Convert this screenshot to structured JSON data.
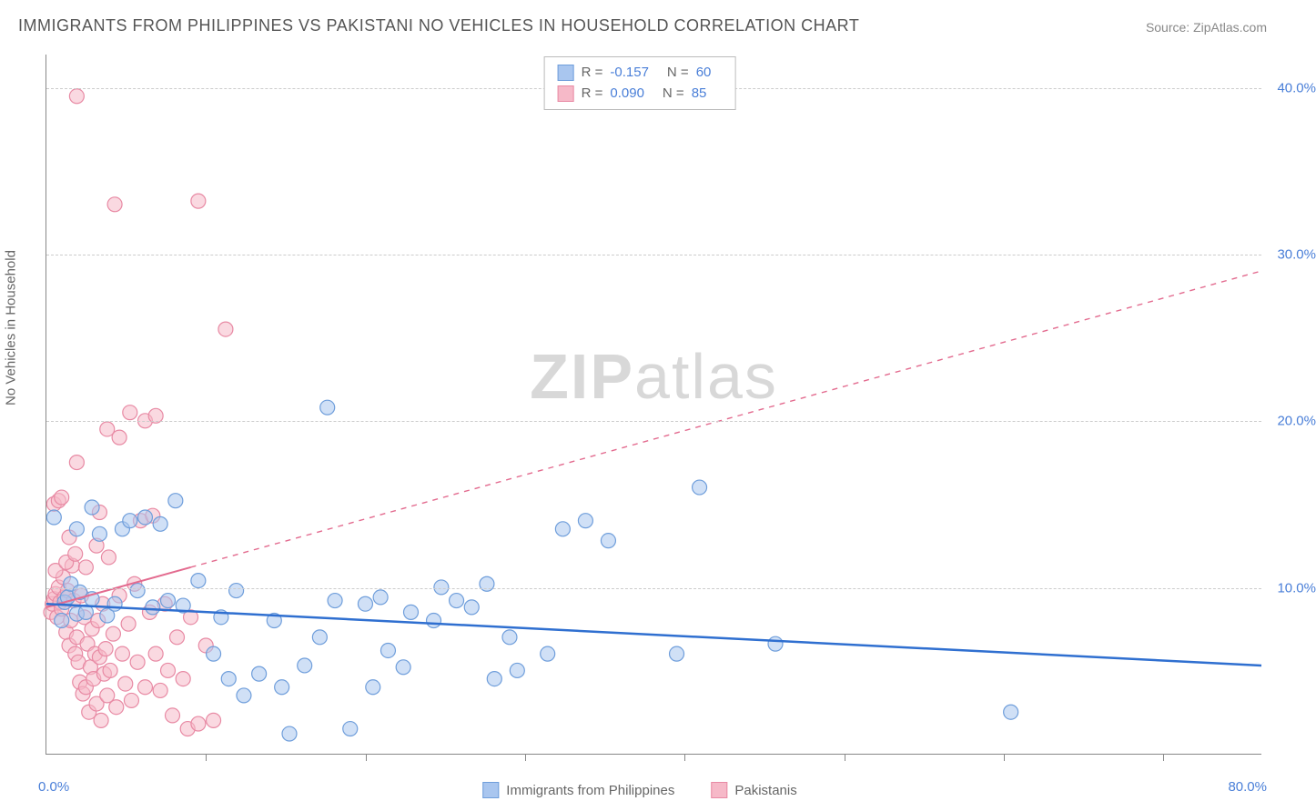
{
  "title": "IMMIGRANTS FROM PHILIPPINES VS PAKISTANI NO VEHICLES IN HOUSEHOLD CORRELATION CHART",
  "source": "Source: ZipAtlas.com",
  "watermark_bold": "ZIP",
  "watermark_rest": "atlas",
  "y_axis_label": "No Vehicles in Household",
  "x_origin": "0.0%",
  "x_max": "80.0%",
  "chart": {
    "xlim": [
      0,
      80
    ],
    "ylim": [
      0,
      42
    ],
    "y_ticks": [
      10,
      20,
      30,
      40
    ],
    "y_tick_labels": [
      "10.0%",
      "20.0%",
      "30.0%",
      "40.0%"
    ],
    "x_tick_positions": [
      10.5,
      21,
      31.5,
      42,
      52.5,
      63,
      73.5
    ],
    "background_color": "#ffffff",
    "grid_color": "#cccccc",
    "axis_color": "#888888",
    "tick_label_color": "#4a7fd8",
    "marker_radius": 8,
    "marker_opacity": 0.55,
    "series": [
      {
        "name": "Immigrants from Philippines",
        "color_fill": "#a9c6ef",
        "color_stroke": "#6f9edb",
        "R": "-0.157",
        "N": "60",
        "trend": {
          "x1": 0,
          "y1": 9.0,
          "x2": 80,
          "y2": 5.3,
          "solid_until_x": 80,
          "stroke": "#2f6fd0",
          "width": 2.5
        },
        "points": [
          [
            0.5,
            14.2
          ],
          [
            1.0,
            8.0
          ],
          [
            1.2,
            9.1
          ],
          [
            1.4,
            9.4
          ],
          [
            1.6,
            10.2
          ],
          [
            2.0,
            8.4
          ],
          [
            2.2,
            9.7
          ],
          [
            2.6,
            8.5
          ],
          [
            3.0,
            9.3
          ],
          [
            3.5,
            13.2
          ],
          [
            4.0,
            8.3
          ],
          [
            4.5,
            9.0
          ],
          [
            5.0,
            13.5
          ],
          [
            5.5,
            14.0
          ],
          [
            6.0,
            9.8
          ],
          [
            6.5,
            14.2
          ],
          [
            7.0,
            8.8
          ],
          [
            7.5,
            13.8
          ],
          [
            8.0,
            9.2
          ],
          [
            8.5,
            15.2
          ],
          [
            9.0,
            8.9
          ],
          [
            10.0,
            10.4
          ],
          [
            11.0,
            6.0
          ],
          [
            11.5,
            8.2
          ],
          [
            12.0,
            4.5
          ],
          [
            12.5,
            9.8
          ],
          [
            13.0,
            3.5
          ],
          [
            14.0,
            4.8
          ],
          [
            15.0,
            8.0
          ],
          [
            15.5,
            4.0
          ],
          [
            16.0,
            1.2
          ],
          [
            17.0,
            5.3
          ],
          [
            18.0,
            7.0
          ],
          [
            18.5,
            20.8
          ],
          [
            19.0,
            9.2
          ],
          [
            20.0,
            1.5
          ],
          [
            21.0,
            9.0
          ],
          [
            21.5,
            4.0
          ],
          [
            22.0,
            9.4
          ],
          [
            22.5,
            6.2
          ],
          [
            23.5,
            5.2
          ],
          [
            24.0,
            8.5
          ],
          [
            25.5,
            8.0
          ],
          [
            26.0,
            10.0
          ],
          [
            27.0,
            9.2
          ],
          [
            28.0,
            8.8
          ],
          [
            29.0,
            10.2
          ],
          [
            29.5,
            4.5
          ],
          [
            30.5,
            7.0
          ],
          [
            31.0,
            5.0
          ],
          [
            33.0,
            6.0
          ],
          [
            34.0,
            13.5
          ],
          [
            35.5,
            14.0
          ],
          [
            37.0,
            12.8
          ],
          [
            41.5,
            6.0
          ],
          [
            43.0,
            16.0
          ],
          [
            48.0,
            6.6
          ],
          [
            63.5,
            2.5
          ],
          [
            2.0,
            13.5
          ],
          [
            3.0,
            14.8
          ]
        ]
      },
      {
        "name": "Pakistanis",
        "color_fill": "#f6b9c8",
        "color_stroke": "#e88aa4",
        "R": "0.090",
        "N": "85",
        "trend": {
          "x1": 0,
          "y1": 8.8,
          "x2": 80,
          "y2": 29.0,
          "solid_until_x": 9.5,
          "stroke": "#e36b8f",
          "width": 2
        },
        "points": [
          [
            0.3,
            8.5
          ],
          [
            0.4,
            9.0
          ],
          [
            0.5,
            9.3
          ],
          [
            0.6,
            9.6
          ],
          [
            0.7,
            8.2
          ],
          [
            0.8,
            10.0
          ],
          [
            0.9,
            9.1
          ],
          [
            1.0,
            8.7
          ],
          [
            1.1,
            10.6
          ],
          [
            1.2,
            9.4
          ],
          [
            1.3,
            7.3
          ],
          [
            1.4,
            9.8
          ],
          [
            1.5,
            6.5
          ],
          [
            1.6,
            8.0
          ],
          [
            1.7,
            11.3
          ],
          [
            1.8,
            9.2
          ],
          [
            1.9,
            6.0
          ],
          [
            2.0,
            7.0
          ],
          [
            2.1,
            5.5
          ],
          [
            2.2,
            4.3
          ],
          [
            2.3,
            9.5
          ],
          [
            2.4,
            3.6
          ],
          [
            2.5,
            8.2
          ],
          [
            2.6,
            4.0
          ],
          [
            2.7,
            6.6
          ],
          [
            2.8,
            2.5
          ],
          [
            2.9,
            5.2
          ],
          [
            3.0,
            7.5
          ],
          [
            3.1,
            4.5
          ],
          [
            3.2,
            6.0
          ],
          [
            3.3,
            3.0
          ],
          [
            3.4,
            8.0
          ],
          [
            3.5,
            5.8
          ],
          [
            3.6,
            2.0
          ],
          [
            3.7,
            9.0
          ],
          [
            3.8,
            4.8
          ],
          [
            3.9,
            6.3
          ],
          [
            4.0,
            3.5
          ],
          [
            4.2,
            5.0
          ],
          [
            4.4,
            7.2
          ],
          [
            4.6,
            2.8
          ],
          [
            4.8,
            9.5
          ],
          [
            5.0,
            6.0
          ],
          [
            5.2,
            4.2
          ],
          [
            5.4,
            7.8
          ],
          [
            5.6,
            3.2
          ],
          [
            5.8,
            10.2
          ],
          [
            6.0,
            5.5
          ],
          [
            6.2,
            14.0
          ],
          [
            6.5,
            4.0
          ],
          [
            6.8,
            8.5
          ],
          [
            7.0,
            14.3
          ],
          [
            7.2,
            6.0
          ],
          [
            7.5,
            3.8
          ],
          [
            7.8,
            9.0
          ],
          [
            8.0,
            5.0
          ],
          [
            8.3,
            2.3
          ],
          [
            8.6,
            7.0
          ],
          [
            9.0,
            4.5
          ],
          [
            9.3,
            1.5
          ],
          [
            9.5,
            8.2
          ],
          [
            10.0,
            1.8
          ],
          [
            10.5,
            6.5
          ],
          [
            11.0,
            2.0
          ],
          [
            0.5,
            15.0
          ],
          [
            0.8,
            15.2
          ],
          [
            1.0,
            15.4
          ],
          [
            1.5,
            13.0
          ],
          [
            2.0,
            17.5
          ],
          [
            3.5,
            14.5
          ],
          [
            4.0,
            19.5
          ],
          [
            4.8,
            19.0
          ],
          [
            5.5,
            20.5
          ],
          [
            6.5,
            20.0
          ],
          [
            7.2,
            20.3
          ],
          [
            2.0,
            39.5
          ],
          [
            4.5,
            33.0
          ],
          [
            10.0,
            33.2
          ],
          [
            11.8,
            25.5
          ],
          [
            0.6,
            11.0
          ],
          [
            1.3,
            11.5
          ],
          [
            1.9,
            12.0
          ],
          [
            2.6,
            11.2
          ],
          [
            3.3,
            12.5
          ],
          [
            4.1,
            11.8
          ]
        ]
      }
    ]
  },
  "legend_bottom": [
    {
      "label": "Immigrants from Philippines",
      "fill": "#a9c6ef",
      "stroke": "#6f9edb"
    },
    {
      "label": "Pakistanis",
      "fill": "#f6b9c8",
      "stroke": "#e88aa4"
    }
  ]
}
